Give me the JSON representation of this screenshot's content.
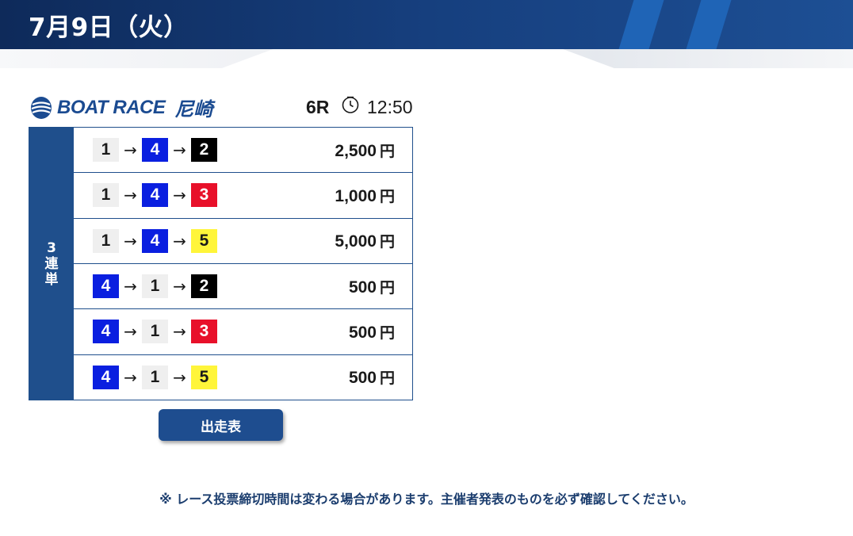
{
  "header": {
    "date": "7月9日（火）"
  },
  "logo": {
    "brand": "BOAT RACE",
    "venue": "尼崎",
    "mark_icon": "boatrace-wave-icon"
  },
  "race": {
    "number": "6R",
    "clock_icon": "clock-icon",
    "time": "12:50"
  },
  "bet_type": "3連単",
  "bet_type_chars": [
    "3",
    "連",
    "単"
  ],
  "boat_colors": {
    "1": {
      "bg": "#efefef",
      "fg": "#1a1a1a"
    },
    "2": {
      "bg": "#000000",
      "fg": "#ffffff"
    },
    "3": {
      "bg": "#e8102a",
      "fg": "#ffffff"
    },
    "4": {
      "bg": "#0a1fe0",
      "fg": "#ffffff"
    },
    "5": {
      "bg": "#fff53a",
      "fg": "#1a1a1a"
    }
  },
  "bets": [
    {
      "combo": [
        "1",
        "4",
        "2"
      ],
      "amount": "2,500",
      "unit": "円"
    },
    {
      "combo": [
        "1",
        "4",
        "3"
      ],
      "amount": "1,000",
      "unit": "円"
    },
    {
      "combo": [
        "1",
        "4",
        "5"
      ],
      "amount": "5,000",
      "unit": "円"
    },
    {
      "combo": [
        "4",
        "1",
        "2"
      ],
      "amount": "500",
      "unit": "円"
    },
    {
      "combo": [
        "4",
        "1",
        "3"
      ],
      "amount": "500",
      "unit": "円"
    },
    {
      "combo": [
        "4",
        "1",
        "5"
      ],
      "amount": "500",
      "unit": "円"
    }
  ],
  "arrow": "→",
  "button": {
    "label": "出走表"
  },
  "notice": "※ レース投票締切時間は変わる場合があります。主催者発表のものを必ず確認してください。"
}
